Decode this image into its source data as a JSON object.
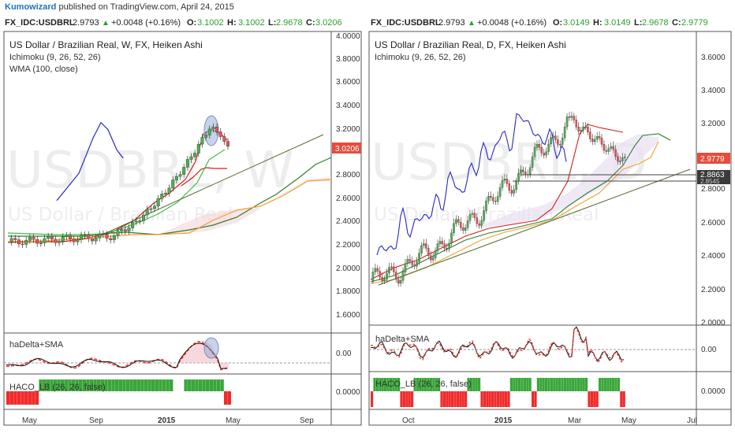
{
  "header": {
    "username": "Kumowizard",
    "published_text": "published on TradingView.com, April 24, 2015"
  },
  "colors": {
    "up": "#4caf50",
    "down": "#ef5350",
    "blue": "#2727c9",
    "red": "#d21f1f",
    "green": "#2e7d2e",
    "orange": "#f0a030",
    "ref": "#556b2f",
    "price_badge": "#e74c3c"
  },
  "left_panel": {
    "quote": {
      "symbol": "FX_IDC:USDBRL",
      "price": "2.9793",
      "change": "+0.0048 (+0.16%)",
      "o_label": "O:",
      "o": "3.1002",
      "h_label": "H:",
      "h": "3.1002",
      "l_label": "L:",
      "l": "2.9678",
      "c_label": "C:",
      "c": "3.0206"
    },
    "title": "US Dollar / Brazilian Real, W, FX, Heiken Ashi",
    "indicators": [
      "Ichimoku (9, 26, 52, 26)",
      "WMA (100, close)"
    ],
    "watermark_symbol": "USDBRL, W",
    "watermark_name": "US Dollar / Brazilian Real",
    "price_badge": "3.0206",
    "osc_label": "haDelta+SMA",
    "haco_label": "HACO_LB (26, 26, false)",
    "chart_data": {
      "type": "candlestick",
      "y_ticks": [
        "4.0000",
        "3.8000",
        "3.6000",
        "3.4000",
        "3.2000",
        "3.0000",
        "2.8000",
        "2.6000",
        "2.4000",
        "2.2000",
        "2.0000",
        "1.8000",
        "1.6000"
      ],
      "ylim": [
        1.45,
        4.0
      ],
      "x_ticks": [
        "May",
        "Sep",
        "2015",
        "May",
        "Sep"
      ],
      "osc_tick": "0.00",
      "haco_tick": "0.0000",
      "series": [
        {
          "name": "Ichimoku (9, 26, 52, 26)",
          "lagging_span": [
            2.57,
            2.8,
            3.1,
            3.23,
            3.17,
            3.0,
            2.93
          ]
        }
      ]
    }
  },
  "right_panel": {
    "quote": {
      "symbol": "FX_IDC:USDBRL",
      "price": "2.9793",
      "change": "+0.0048 (+0.16%)",
      "o_label": "O:",
      "o": "3.0149",
      "h_label": "H:",
      "h": "3.0149",
      "l_label": "L:",
      "l": "2.9678",
      "c_label": "C:",
      "c": "2.9779"
    },
    "title": "US Dollar / Brazilian Real, D, FX, Heiken Ashi",
    "indicators": [
      "Ichimoku (9, 26, 52, 26)"
    ],
    "watermark_symbol": "USDBRL, D",
    "watermark_name": "US Dollar / Brazilian Real",
    "price_badge": "2.9779",
    "level_badge": "2.8863",
    "level_badge_2": "2.8545",
    "osc_label": "haDelta+SMA",
    "haco_label": "HACO_LB (26, 26, false)",
    "chart_data": {
      "type": "candlestick",
      "y_ticks": [
        "3.6000",
        "3.4000",
        "3.2000",
        "3.0000",
        "2.8000",
        "2.6000",
        "2.4000",
        "2.2000",
        "2.0000"
      ],
      "ylim": [
        1.97,
        3.75
      ],
      "x_ticks": [
        "Oct",
        "2015",
        "Mar",
        "May",
        "Jul"
      ],
      "osc_tick": "0.00",
      "haco_tick": "0.0000"
    }
  }
}
